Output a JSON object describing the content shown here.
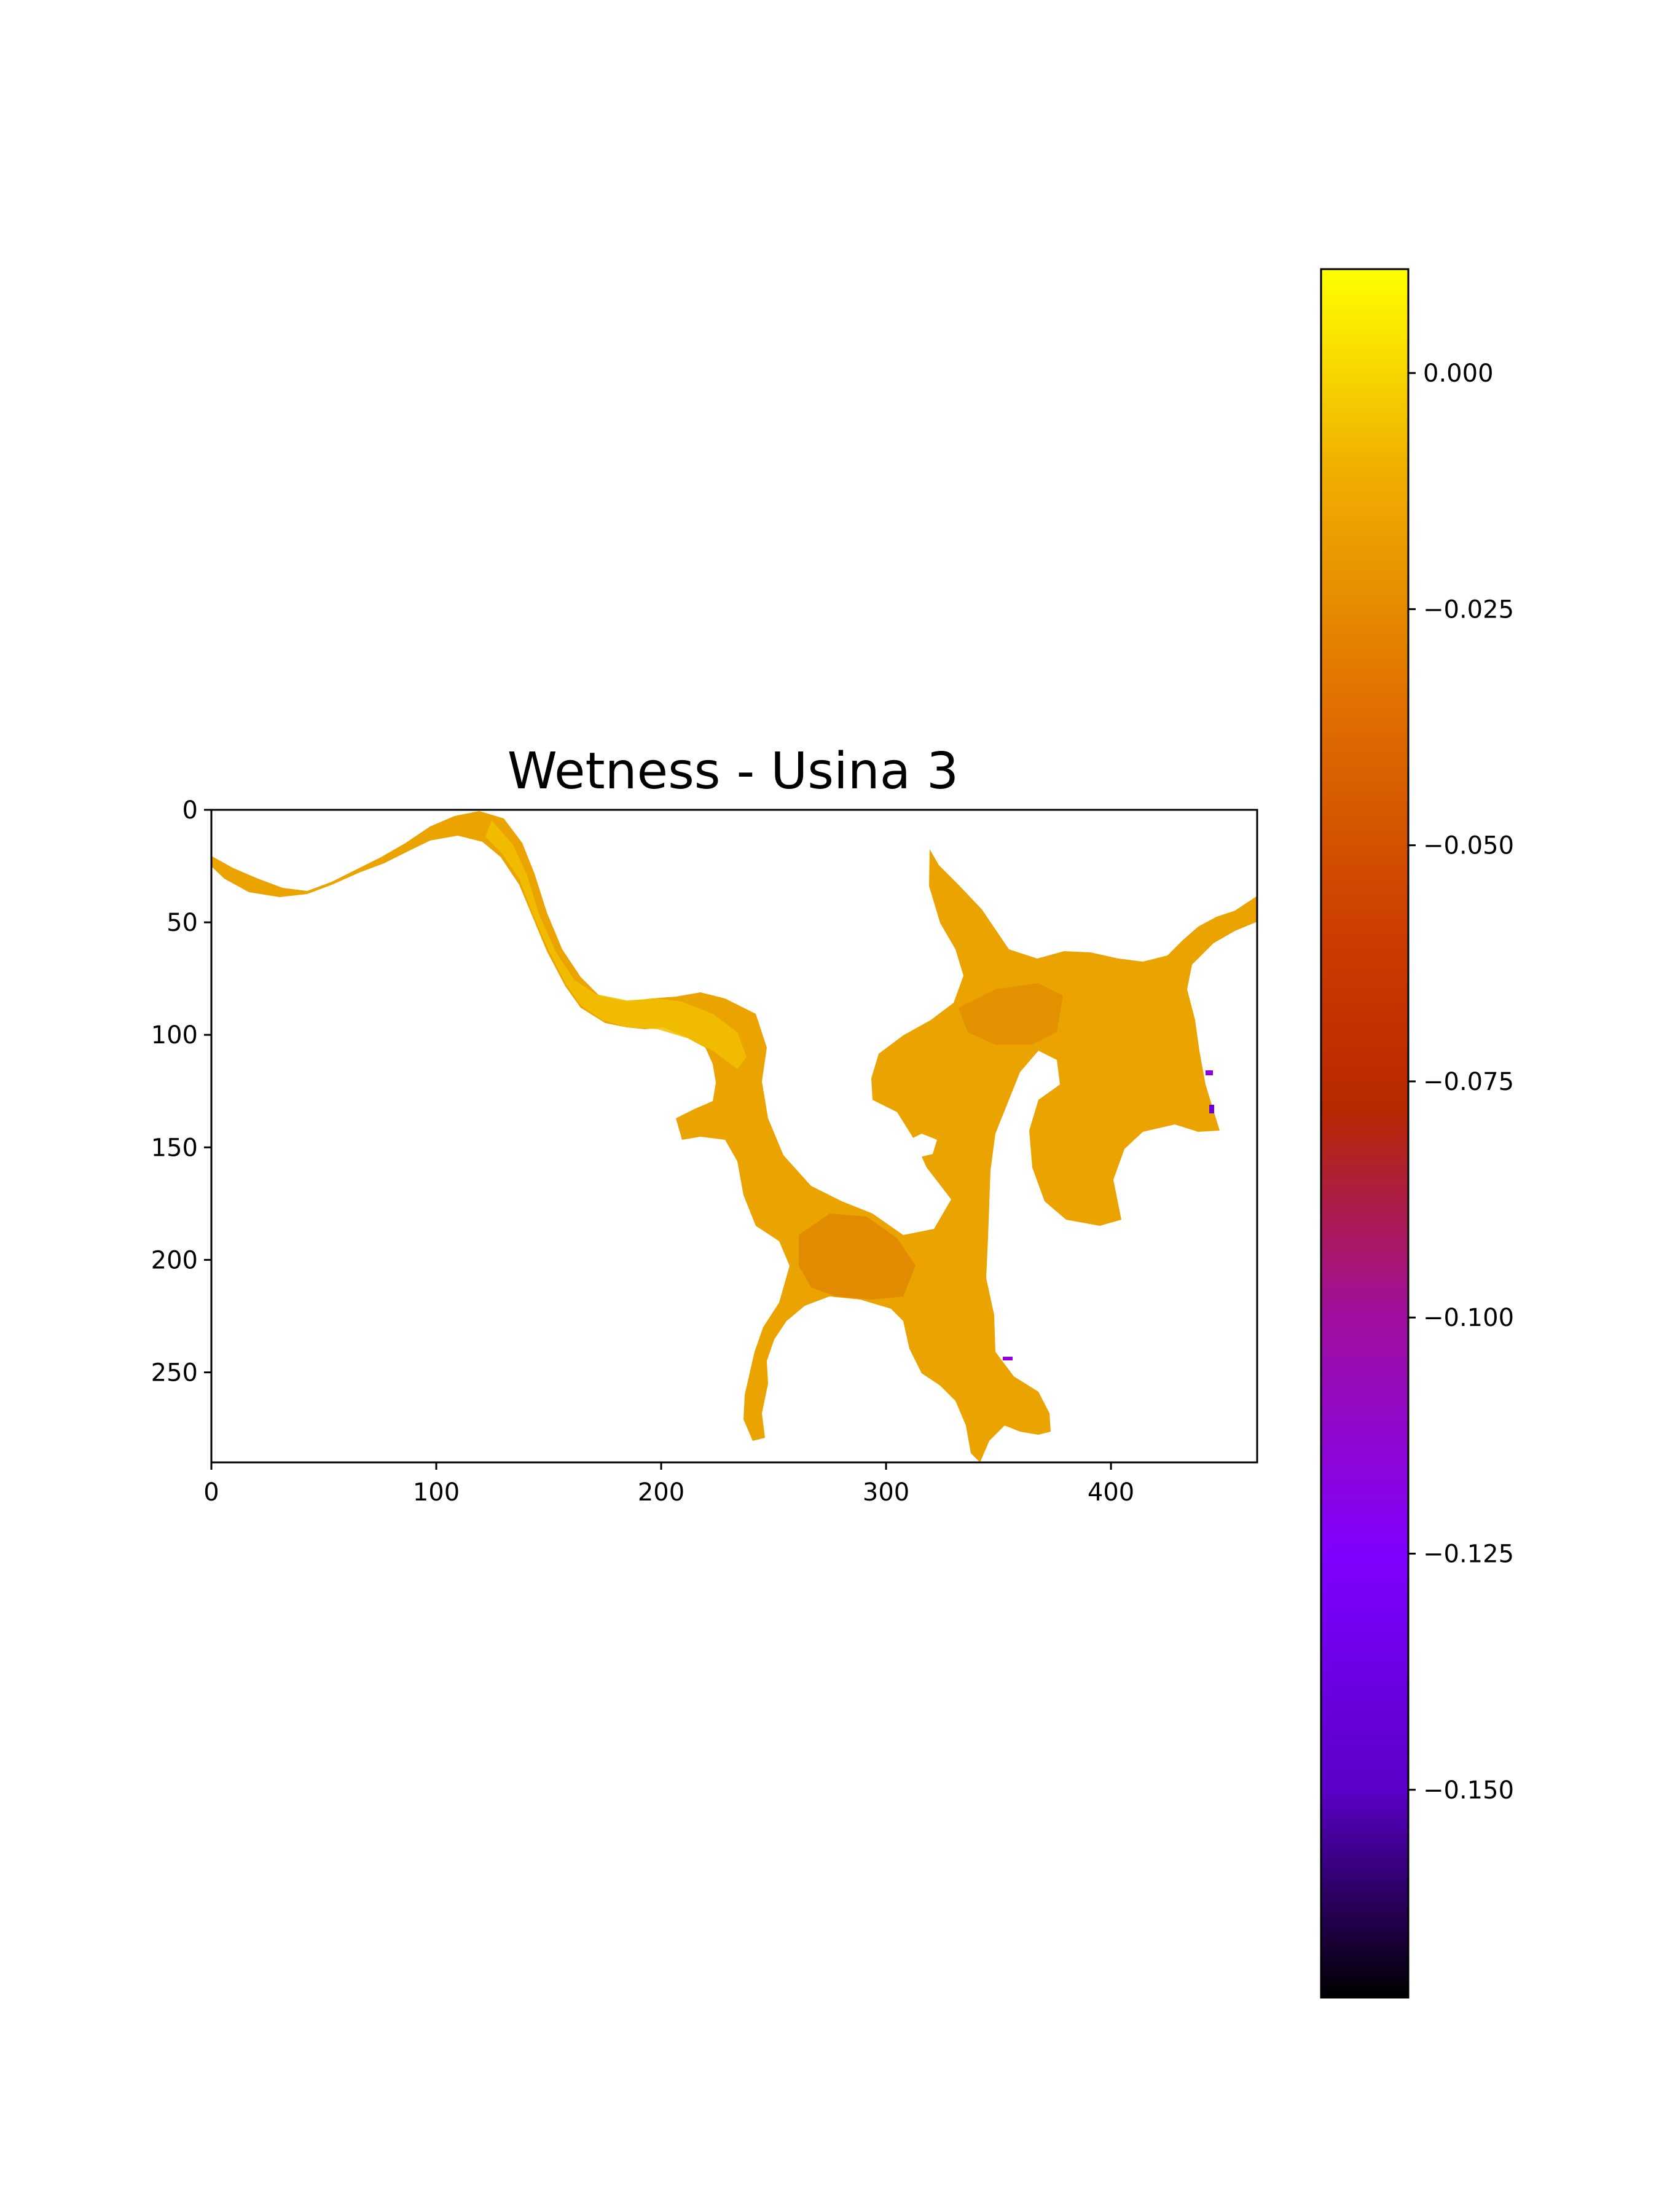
{
  "chart_data": {
    "type": "heatmap",
    "title": "Wetness - Usina 3",
    "xlabel": "",
    "ylabel": "",
    "xlim": [
      0,
      465
    ],
    "ylim": [
      290,
      0
    ],
    "x_ticks": [
      0,
      100,
      200,
      300,
      400
    ],
    "y_ticks": [
      0,
      50,
      100,
      150,
      200,
      250
    ],
    "grid": false,
    "colormap": "gnuplot",
    "colorbar": {
      "range": [
        -0.172,
        0.011
      ],
      "ticks": [
        0.0,
        -0.025,
        -0.05,
        -0.075,
        -0.1,
        -0.125,
        -0.15
      ],
      "tick_labels": [
        "0.000",
        "−0.025",
        "−0.050",
        "−0.075",
        "−0.100",
        "−0.125",
        "−0.150"
      ],
      "stops": [
        {
          "value": 0.011,
          "color": "#ffff00"
        },
        {
          "value": -0.01,
          "color": "#f0b000"
        },
        {
          "value": -0.035,
          "color": "#e07000"
        },
        {
          "value": -0.06,
          "color": "#cc3c00"
        },
        {
          "value": -0.078,
          "color": "#b82800"
        },
        {
          "value": -0.1,
          "color": "#a00fa0"
        },
        {
          "value": -0.125,
          "color": "#8000ff"
        },
        {
          "value": -0.15,
          "color": "#5a00c8"
        },
        {
          "value": -0.172,
          "color": "#000000"
        }
      ]
    },
    "value_range_in_region": [
      -0.035,
      -0.005
    ],
    "dominant_value": -0.02,
    "region_colors": {
      "light": "#f2c100",
      "mid": "#eba300",
      "dark": "#e08500",
      "outlier": "#8f00d8"
    }
  }
}
